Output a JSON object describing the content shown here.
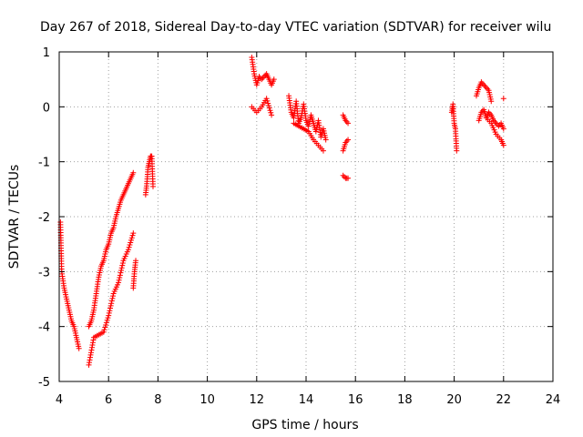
{
  "chart_data": {
    "type": "scatter",
    "title": "Day 267 of 2018, Sidereal Day-to-day VTEC variation (SDTVAR) for receiver wilu",
    "xlabel": "GPS time / hours",
    "ylabel": "SDTVAR / TECUs",
    "xlim": [
      4,
      24
    ],
    "ylim": [
      -5,
      1
    ],
    "xticks": [
      "4",
      "6",
      "8",
      "10",
      "12",
      "14",
      "16",
      "18",
      "20",
      "22",
      "24"
    ],
    "yticks": [
      "1",
      "0",
      "-1",
      "-2",
      "-3",
      "-4",
      "-5"
    ],
    "grid": true,
    "marker": "plus",
    "color": "#ff0000",
    "series": [
      {
        "name": "SDTVAR",
        "segments": [
          {
            "x": [
              4.05,
              4.1,
              4.2,
              4.3,
              4.4,
              4.5,
              4.6,
              4.7,
              4.8
            ],
            "y": [
              -2.1,
              -3.0,
              -3.3,
              -3.5,
              -3.7,
              -3.9,
              -4.0,
              -4.2,
              -4.4
            ]
          },
          {
            "x": [
              5.2,
              5.3,
              5.4,
              5.5,
              5.6,
              5.7,
              5.8,
              5.9,
              6.0,
              6.1,
              6.2,
              6.3,
              6.4,
              6.5,
              6.6,
              6.7,
              6.8,
              6.9,
              7.0
            ],
            "y": [
              -4.0,
              -3.9,
              -3.7,
              -3.4,
              -3.1,
              -2.9,
              -2.8,
              -2.6,
              -2.5,
              -2.3,
              -2.2,
              -2.0,
              -1.85,
              -1.7,
              -1.6,
              -1.5,
              -1.4,
              -1.3,
              -1.2
            ]
          },
          {
            "x": [
              5.2,
              5.4,
              5.6,
              5.8,
              6.0,
              6.2,
              6.4,
              6.6,
              6.8,
              7.0
            ],
            "y": [
              -4.7,
              -4.2,
              -4.15,
              -4.1,
              -3.8,
              -3.4,
              -3.2,
              -2.8,
              -2.6,
              -2.3
            ]
          },
          {
            "x": [
              7.0,
              7.05,
              7.1
            ],
            "y": [
              -3.3,
              -3.0,
              -2.8
            ]
          },
          {
            "x": [
              7.5,
              7.55,
              7.6,
              7.65,
              7.7,
              7.75,
              7.8
            ],
            "y": [
              -1.6,
              -1.4,
              -1.1,
              -1.0,
              -0.9,
              -0.9,
              -1.45
            ]
          },
          {
            "x": [
              11.8,
              11.9,
              12.0,
              12.1,
              12.2,
              12.3,
              12.4,
              12.5,
              12.6,
              12.7
            ],
            "y": [
              0.9,
              0.6,
              0.4,
              0.55,
              0.5,
              0.55,
              0.6,
              0.5,
              0.4,
              0.5
            ]
          },
          {
            "x": [
              11.8,
              12.0,
              12.2,
              12.4,
              12.6
            ],
            "y": [
              0.0,
              -0.1,
              0.0,
              0.15,
              -0.15
            ]
          },
          {
            "x": [
              13.3,
              13.4,
              13.5,
              13.6,
              13.7,
              13.8,
              13.9,
              14.0,
              14.1,
              14.2,
              14.3,
              14.4,
              14.5,
              14.6,
              14.7,
              14.8
            ],
            "y": [
              0.2,
              -0.1,
              -0.2,
              0.1,
              -0.3,
              -0.2,
              0.05,
              -0.25,
              -0.35,
              -0.15,
              -0.3,
              -0.45,
              -0.25,
              -0.55,
              -0.4,
              -0.6
            ]
          },
          {
            "x": [
              13.5,
              13.7,
              13.9,
              14.1,
              14.3,
              14.5,
              14.7
            ],
            "y": [
              -0.3,
              -0.35,
              -0.4,
              -0.45,
              -0.6,
              -0.7,
              -0.8
            ]
          },
          {
            "x": [
              15.5,
              15.6,
              15.7
            ],
            "y": [
              -0.15,
              -0.25,
              -0.3
            ]
          },
          {
            "x": [
              15.5,
              15.6,
              15.7
            ],
            "y": [
              -0.8,
              -0.65,
              -0.6
            ]
          },
          {
            "x": [
              15.5,
              15.6,
              15.7
            ],
            "y": [
              -1.25,
              -1.3,
              -1.3
            ]
          },
          {
            "x": [
              19.9,
              19.95,
              20.0,
              20.05,
              20.1
            ],
            "y": [
              -0.1,
              0.05,
              -0.3,
              -0.4,
              -0.8
            ]
          },
          {
            "x": [
              20.9,
              21.0,
              21.1,
              21.2,
              21.3,
              21.4,
              21.5
            ],
            "y": [
              0.2,
              0.35,
              0.45,
              0.4,
              0.35,
              0.3,
              0.1
            ]
          },
          {
            "x": [
              21.0,
              21.1,
              21.2,
              21.3,
              21.4,
              21.5,
              21.6,
              21.7,
              21.8,
              21.9,
              22.0
            ],
            "y": [
              -0.25,
              -0.1,
              -0.05,
              -0.2,
              -0.1,
              -0.15,
              -0.25,
              -0.3,
              -0.35,
              -0.3,
              -0.4
            ]
          },
          {
            "x": [
              21.3,
              21.5,
              21.7,
              21.9,
              22.0
            ],
            "y": [
              -0.2,
              -0.3,
              -0.5,
              -0.6,
              -0.7
            ]
          },
          {
            "x": [
              22.0
            ],
            "y": [
              0.15
            ]
          }
        ]
      }
    ]
  }
}
